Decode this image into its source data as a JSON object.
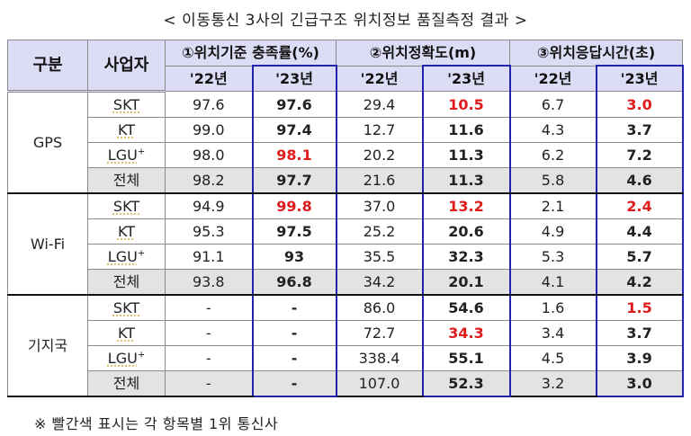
{
  "title": "< 이동통신 3사의 긴급구조 위치정보 품질측정 결과 >",
  "header": {
    "category": "구분",
    "carrier": "사업자",
    "metrics": [
      {
        "label": "①위치기준 충족률(%)",
        "y22": "'22년",
        "y23": "'23년"
      },
      {
        "label": "②위치정확도(m)",
        "y22": "'22년",
        "y23": "'23년"
      },
      {
        "label": "③위치응답시간(초)",
        "y22": "'22년",
        "y23": "'23년"
      }
    ]
  },
  "groups": [
    {
      "name": "GPS",
      "rows": [
        {
          "carrier": "SKT",
          "sup": "",
          "v": [
            "97.6",
            "97.6",
            "29.4",
            "10.5",
            "6.7",
            "3.0"
          ],
          "red": [
            false,
            false,
            false,
            true,
            false,
            true
          ]
        },
        {
          "carrier": "KT",
          "sup": "",
          "v": [
            "99.0",
            "97.4",
            "12.7",
            "11.6",
            "4.3",
            "3.7"
          ],
          "red": [
            false,
            false,
            false,
            false,
            false,
            false
          ]
        },
        {
          "carrier": "LGU",
          "sup": "+",
          "v": [
            "98.0",
            "98.1",
            "20.2",
            "11.3",
            "6.2",
            "7.2"
          ],
          "red": [
            false,
            true,
            false,
            false,
            false,
            false
          ]
        },
        {
          "carrier": "전체",
          "sup": "",
          "v": [
            "98.2",
            "97.7",
            "21.6",
            "11.3",
            "5.8",
            "4.6"
          ],
          "red": [
            false,
            false,
            false,
            false,
            false,
            false
          ]
        }
      ]
    },
    {
      "name": "Wi-Fi",
      "rows": [
        {
          "carrier": "SKT",
          "sup": "",
          "v": [
            "94.9",
            "99.8",
            "37.0",
            "13.2",
            "2.1",
            "2.4"
          ],
          "red": [
            false,
            true,
            false,
            true,
            false,
            true
          ]
        },
        {
          "carrier": "KT",
          "sup": "",
          "v": [
            "95.3",
            "97.5",
            "25.2",
            "20.6",
            "4.9",
            "4.4"
          ],
          "red": [
            false,
            false,
            false,
            false,
            false,
            false
          ]
        },
        {
          "carrier": "LGU",
          "sup": "+",
          "v": [
            "91.1",
            "93",
            "35.5",
            "32.3",
            "5.3",
            "5.7"
          ],
          "red": [
            false,
            false,
            false,
            false,
            false,
            false
          ]
        },
        {
          "carrier": "전체",
          "sup": "",
          "v": [
            "93.8",
            "96.8",
            "34.2",
            "20.1",
            "4.1",
            "4.2"
          ],
          "red": [
            false,
            false,
            false,
            false,
            false,
            false
          ]
        }
      ]
    },
    {
      "name": "기지국",
      "rows": [
        {
          "carrier": "SKT",
          "sup": "",
          "v": [
            "-",
            "-",
            "86.0",
            "54.6",
            "1.6",
            "1.5"
          ],
          "red": [
            false,
            false,
            false,
            false,
            false,
            true
          ]
        },
        {
          "carrier": "KT",
          "sup": "",
          "v": [
            "-",
            "-",
            "72.7",
            "34.3",
            "3.4",
            "3.7"
          ],
          "red": [
            false,
            false,
            false,
            true,
            false,
            false
          ]
        },
        {
          "carrier": "LGU",
          "sup": "+",
          "v": [
            "-",
            "-",
            "338.4",
            "55.1",
            "4.5",
            "3.9"
          ],
          "red": [
            false,
            false,
            false,
            false,
            false,
            false
          ]
        },
        {
          "carrier": "전체",
          "sup": "",
          "v": [
            "-",
            "-",
            "107.0",
            "52.3",
            "3.2",
            "3.0"
          ],
          "red": [
            false,
            false,
            false,
            false,
            false,
            false
          ]
        }
      ]
    }
  ],
  "note": "※ 빨간색 표시는 각 항목별 1위 통신사",
  "colors": {
    "highlight_red": "#e01b1b",
    "header_bg": "#dcdcf5",
    "total_bg": "#e3e3e3",
    "frame_blue": "#2222aa"
  }
}
